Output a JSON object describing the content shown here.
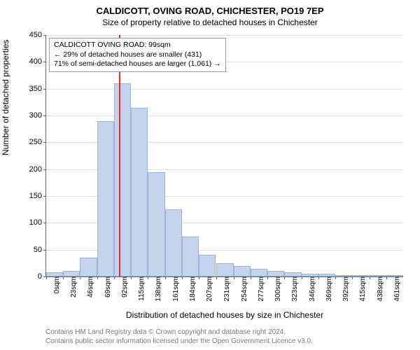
{
  "chart": {
    "type": "histogram",
    "title": "CALDICOTT, OVING ROAD, CHICHESTER, PO19 7EP",
    "subtitle": "Size of property relative to detached houses in Chichester",
    "ylabel": "Number of detached properties",
    "xlabel": "Distribution of detached houses by size in Chichester",
    "ylim": [
      0,
      450
    ],
    "ytick_step": 50,
    "bar_fill": "#c5d4ec",
    "bar_border": "#9bb4da",
    "grid_color": "#e0e0e0",
    "background_color": "#ffffff",
    "axis_color": "#666666",
    "marker_color": "#d9302c",
    "marker_x": 99,
    "xticks": [
      "0sqm",
      "23sqm",
      "46sqm",
      "69sqm",
      "92sqm",
      "115sqm",
      "138sqm",
      "161sqm",
      "184sqm",
      "207sqm",
      "231sqm",
      "254sqm",
      "277sqm",
      "300sqm",
      "323sqm",
      "346sqm",
      "369sqm",
      "392sqm",
      "415sqm",
      "438sqm",
      "461sqm"
    ],
    "x_bin_values": [
      0,
      23,
      46,
      69,
      92,
      115,
      138,
      161,
      184,
      207,
      231,
      254,
      277,
      300,
      323,
      346,
      369,
      392,
      415,
      438,
      461
    ],
    "bin_width": 23,
    "bars": [
      8,
      10,
      35,
      290,
      360,
      315,
      195,
      125,
      75,
      40,
      25,
      20,
      15,
      10,
      8,
      5,
      5,
      3,
      3,
      1,
      1,
      0
    ],
    "info_box": {
      "line1": "CALDICOTT OVING ROAD: 99sqm",
      "line2": "← 29% of detached houses are smaller (431)",
      "line3": "71% of semi-detached houses are larger (1,061) →"
    },
    "attribution": {
      "line1": "Contains HM Land Registry data © Crown copyright and database right 2024.",
      "line2": "Contains public sector information licensed under the Open Government Licence v3.0."
    },
    "title_fontsize": 13,
    "subtitle_fontsize": 12,
    "label_fontsize": 12,
    "tick_fontsize": 11,
    "info_fontsize": 10.5,
    "attribution_fontsize": 10,
    "attribution_color": "#7a7a7a"
  }
}
